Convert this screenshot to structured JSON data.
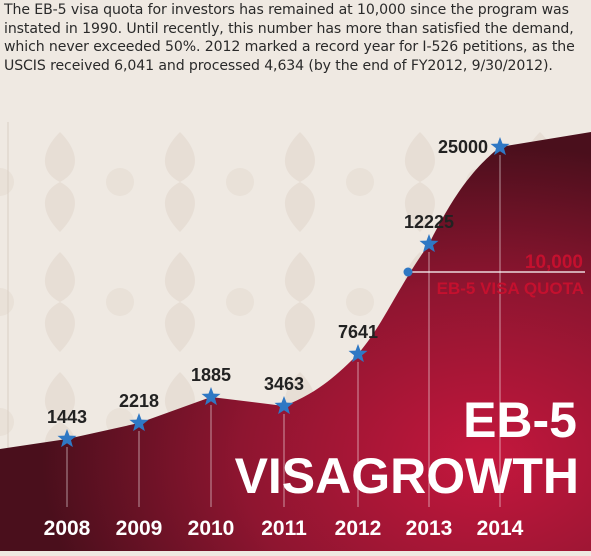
{
  "intro_text": "The EB-5 visa quota for investors has remained at 10,000 since the program was instated in 1990. Until recently, this number has more than satisfied the demand, which never exceeded 50%. 2012 marked a record year for I-526 petitions, as the USCIS received 6,041 and processed 4,634 (by the end of FY2012, 9/30/2012).",
  "quota": {
    "value_label": "10,000",
    "text_label": "EB-5 VISA QUOTA",
    "value": 10000
  },
  "title_line1": "EB-5",
  "title_line2": "VISAGROWTH",
  "colors": {
    "area_dark": "#4a0f1c",
    "area_light": "#c4173d",
    "star": "#2f78c4",
    "quota_text": "#c4102e",
    "background": "#efe9e2"
  },
  "chart_data": {
    "type": "area",
    "categories": [
      "2008",
      "2009",
      "2010",
      "2011",
      "2012",
      "2013",
      "2014"
    ],
    "values": [
      1443,
      2218,
      1885,
      3463,
      7641,
      12225,
      25000
    ],
    "value_labels": [
      "1443",
      "2218",
      "1885",
      "3463",
      "7641",
      "12225",
      "25000"
    ],
    "title": "EB-5 VISAGROWTH",
    "xlabel": "",
    "ylabel": "",
    "grid": false,
    "legend": "none"
  }
}
